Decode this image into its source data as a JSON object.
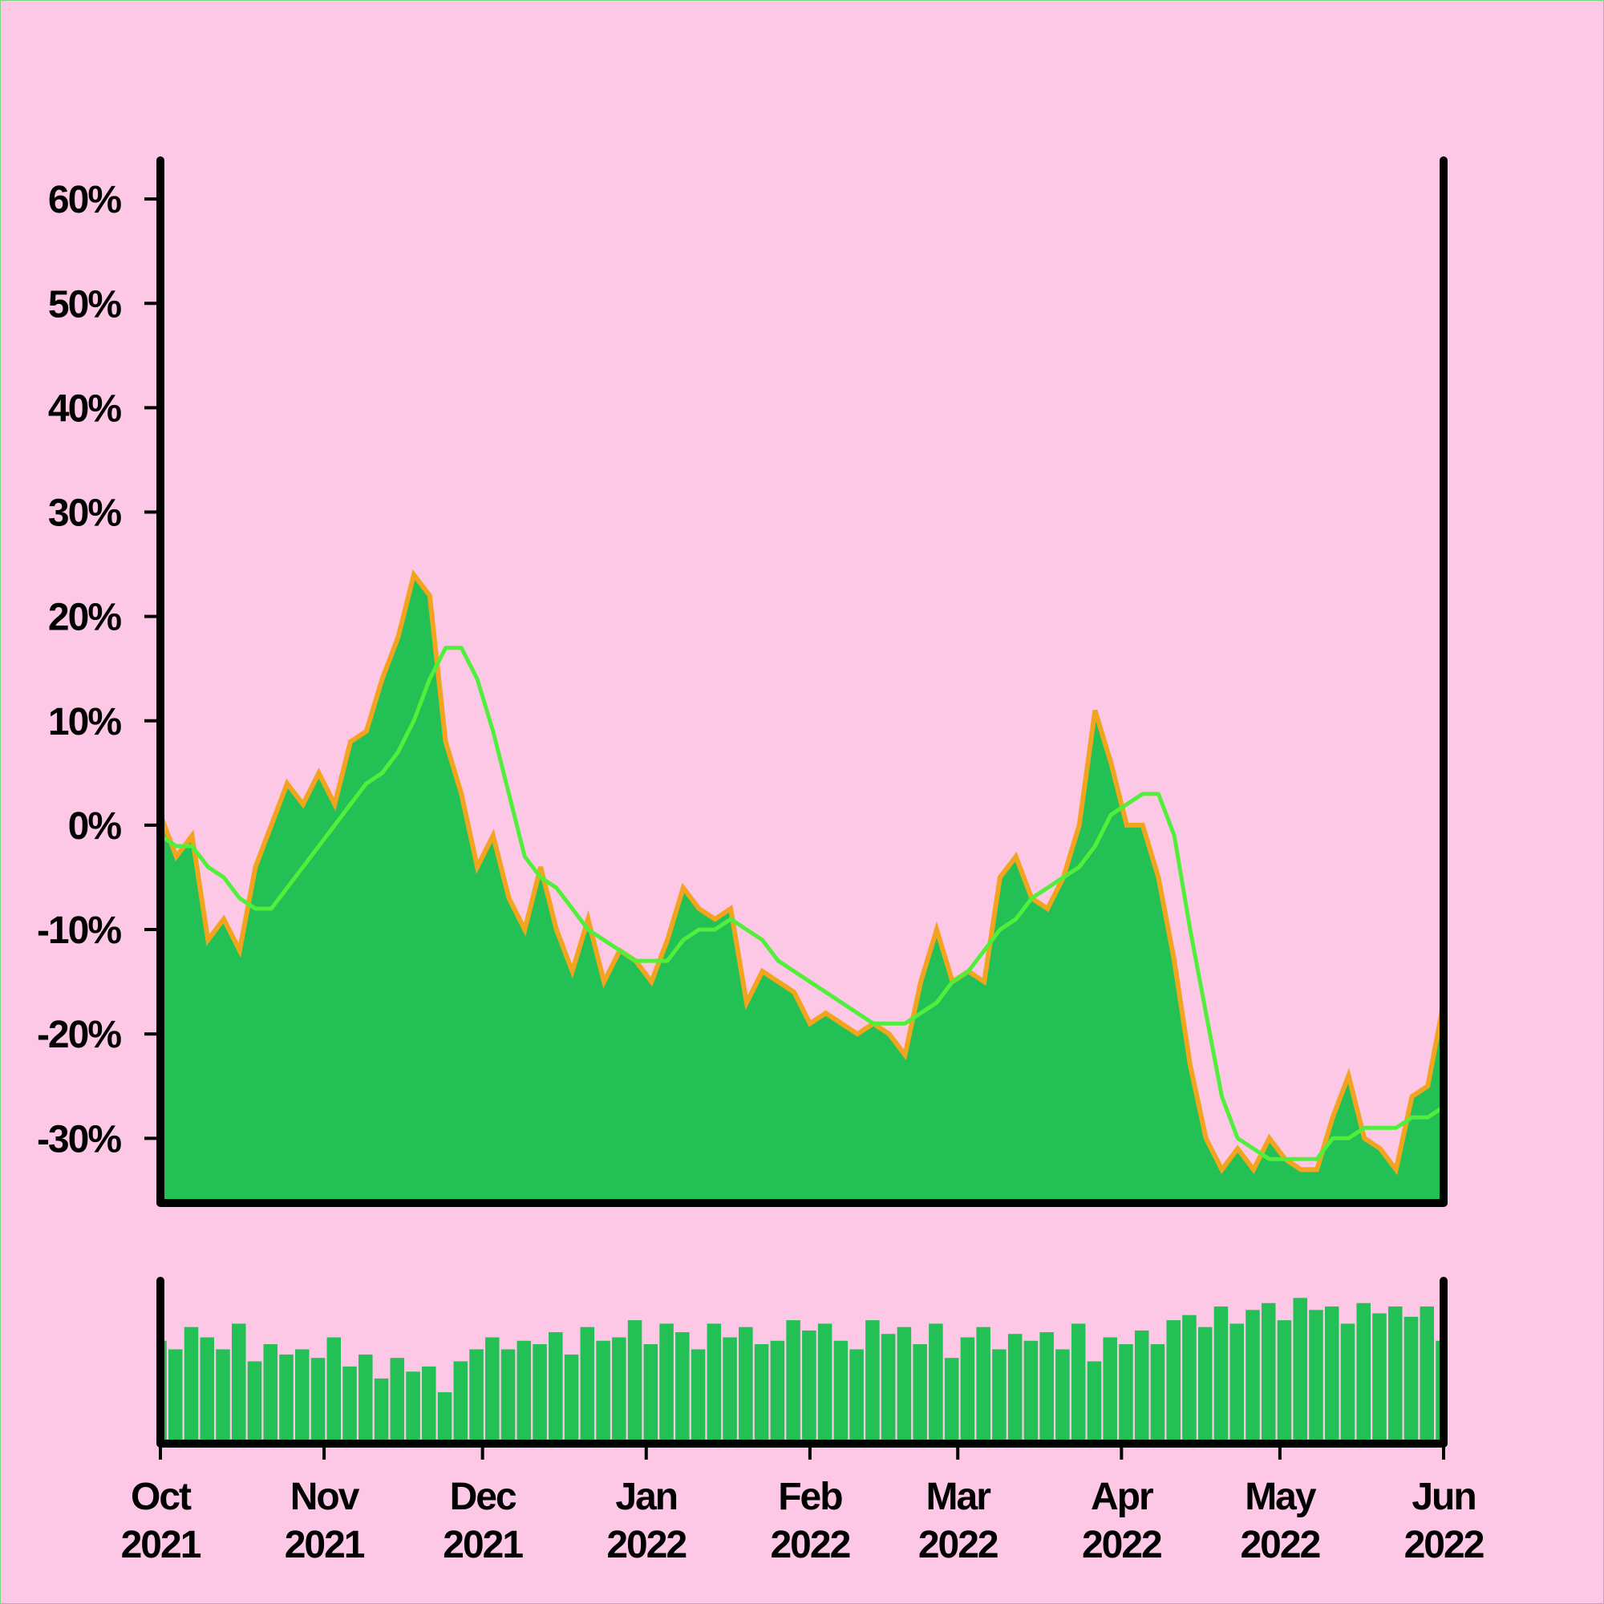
{
  "chart_data": [
    {
      "type": "area",
      "xlim": [
        0,
        243
      ],
      "xticks": [
        {
          "value": 0,
          "label": "Oct 2021"
        },
        {
          "value": 31,
          "label": "Nov 2021"
        },
        {
          "value": 61,
          "label": "Dec 2021"
        },
        {
          "value": 92,
          "label": "Jan 2022"
        },
        {
          "value": 123,
          "label": "Feb 2022"
        },
        {
          "value": 151,
          "label": "Mar 2022"
        },
        {
          "value": 182,
          "label": "Apr 2022"
        },
        {
          "value": 212,
          "label": "May 2022"
        },
        {
          "value": 243,
          "label": "Jun 2022"
        }
      ],
      "ylim": [
        -36.2,
        63.7
      ],
      "yticks": [
        {
          "value": -30,
          "label": "-30%"
        },
        {
          "value": -20,
          "label": "-20%"
        },
        {
          "value": -10,
          "label": "-10%"
        },
        {
          "value": 0,
          "label": "0%"
        },
        {
          "value": 10,
          "label": "10%"
        },
        {
          "value": 20,
          "label": "20%"
        },
        {
          "value": 30,
          "label": "30%"
        },
        {
          "value": 40,
          "label": "40%"
        },
        {
          "value": 50,
          "label": "50%"
        },
        {
          "value": 60,
          "label": "60%"
        }
      ],
      "x": [
        0,
        3,
        6,
        9,
        12,
        15,
        18,
        21,
        24,
        27,
        30,
        33,
        36,
        39,
        42,
        45,
        48,
        51,
        54,
        57,
        60,
        63,
        66,
        69,
        72,
        75,
        78,
        81,
        84,
        87,
        90,
        93,
        96,
        99,
        102,
        105,
        108,
        111,
        114,
        117,
        120,
        123,
        126,
        129,
        132,
        135,
        138,
        141,
        144,
        147,
        150,
        153,
        156,
        159,
        162,
        165,
        168,
        171,
        174,
        177,
        180,
        183,
        186,
        189,
        192,
        195,
        198,
        201,
        204,
        207,
        210,
        213,
        216,
        219,
        222,
        225,
        228,
        231,
        234,
        237,
        240,
        243
      ],
      "series": [
        {
          "type": "area",
          "color": "#22c055",
          "edge_color": "#f2a41f",
          "values": [
            1,
            -3,
            -1,
            -11,
            -9,
            -12,
            -4,
            0,
            4,
            2,
            5,
            2,
            8,
            9,
            14,
            18,
            24,
            22,
            8,
            3,
            -4,
            -1,
            -7,
            -10,
            -4,
            -10,
            -14,
            -9,
            -15,
            -12,
            -13,
            -15,
            -11,
            -6,
            -8,
            -9,
            -8,
            -17,
            -14,
            -15,
            -16,
            -19,
            -18,
            -19,
            -20,
            -19,
            -20,
            -22,
            -15,
            -10,
            -15,
            -14,
            -15,
            -5,
            -3,
            -7,
            -8,
            -5,
            0,
            11,
            6,
            0,
            0,
            -5,
            -13,
            -23,
            -30,
            -33,
            -31,
            -33,
            -30,
            -32,
            -33,
            -33,
            -28,
            -24,
            -30,
            -31,
            -33,
            -26,
            -25,
            -17
          ]
        },
        {
          "type": "line",
          "color": "#52ee3c",
          "values": [
            -1,
            -2,
            -2,
            -4,
            -5,
            -7,
            -8,
            -8,
            -6,
            -4,
            -2,
            0,
            2,
            4,
            5,
            7,
            10,
            14,
            17,
            17,
            14,
            9,
            3,
            -3,
            -5,
            -6,
            -8,
            -10,
            -11,
            -12,
            -13,
            -13,
            -13,
            -11,
            -10,
            -10,
            -9,
            -10,
            -11,
            -13,
            -14,
            -15,
            -16,
            -17,
            -18,
            -19,
            -19,
            -19,
            -18,
            -17,
            -15,
            -14,
            -12,
            -10,
            -9,
            -7,
            -6,
            -5,
            -4,
            -2,
            1,
            2,
            3,
            3,
            -1,
            -10,
            -18,
            -26,
            -30,
            -31,
            -32,
            -32,
            -32,
            -32,
            -30,
            -30,
            -29,
            -29,
            -29,
            -28,
            -28,
            -27
          ]
        }
      ]
    },
    {
      "type": "bar",
      "color": "#22c055",
      "ylim": [
        0,
        95
      ],
      "values": [
        60,
        55,
        68,
        62,
        55,
        70,
        48,
        58,
        52,
        55,
        50,
        62,
        45,
        52,
        38,
        50,
        42,
        45,
        30,
        48,
        55,
        62,
        55,
        60,
        58,
        65,
        52,
        68,
        60,
        62,
        72,
        58,
        70,
        65,
        55,
        70,
        62,
        68,
        58,
        60,
        72,
        66,
        70,
        60,
        55,
        72,
        64,
        68,
        58,
        70,
        50,
        62,
        68,
        55,
        64,
        60,
        65,
        55,
        70,
        48,
        62,
        58,
        66,
        58,
        72,
        75,
        68,
        80,
        70,
        78,
        82,
        72,
        85,
        78,
        80,
        70,
        82,
        76,
        80,
        74,
        80,
        60
      ]
    }
  ]
}
